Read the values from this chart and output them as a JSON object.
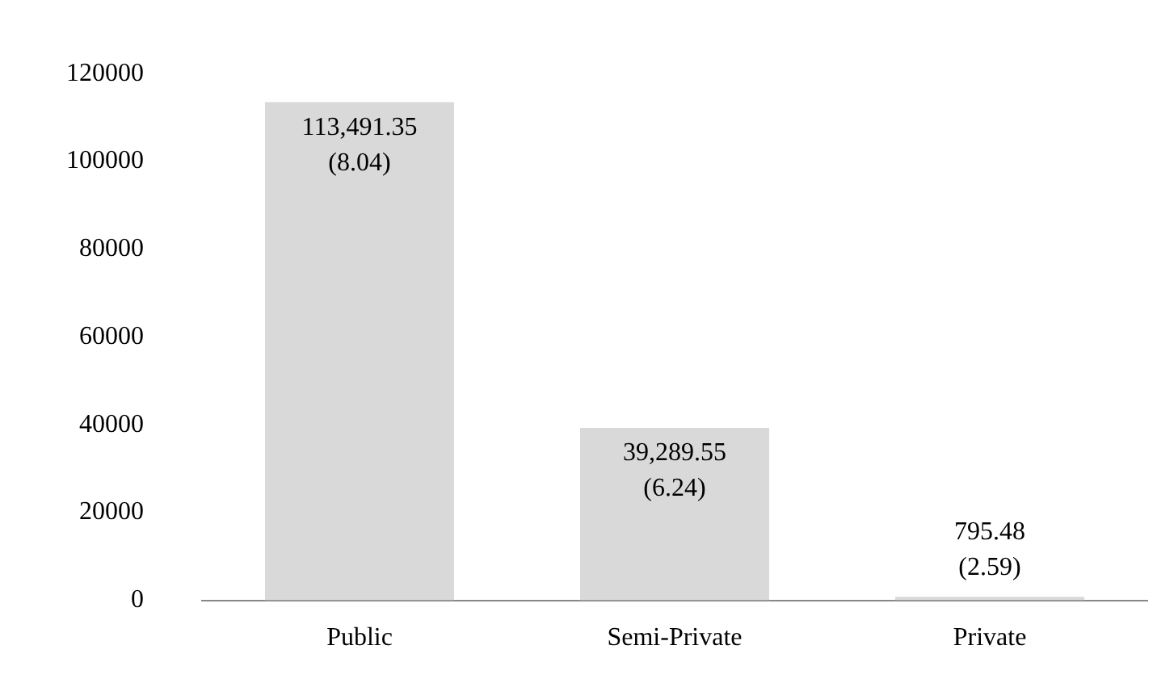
{
  "chart_data": {
    "type": "bar",
    "categories": [
      "Public",
      "Semi-Private",
      "Private"
    ],
    "values": [
      113491.35,
      39289.55,
      795.48
    ],
    "color": "#d9d9d9",
    "value_labels": [
      "113,491.35\n(8.04)",
      "39,289.55\n(6.24)",
      "795.48\n(2.59)"
    ],
    "ylim": [
      0,
      120000
    ],
    "yticks": [
      0,
      20000,
      40000,
      60000,
      80000,
      100000,
      120000
    ],
    "grid": false,
    "legend": false
  }
}
